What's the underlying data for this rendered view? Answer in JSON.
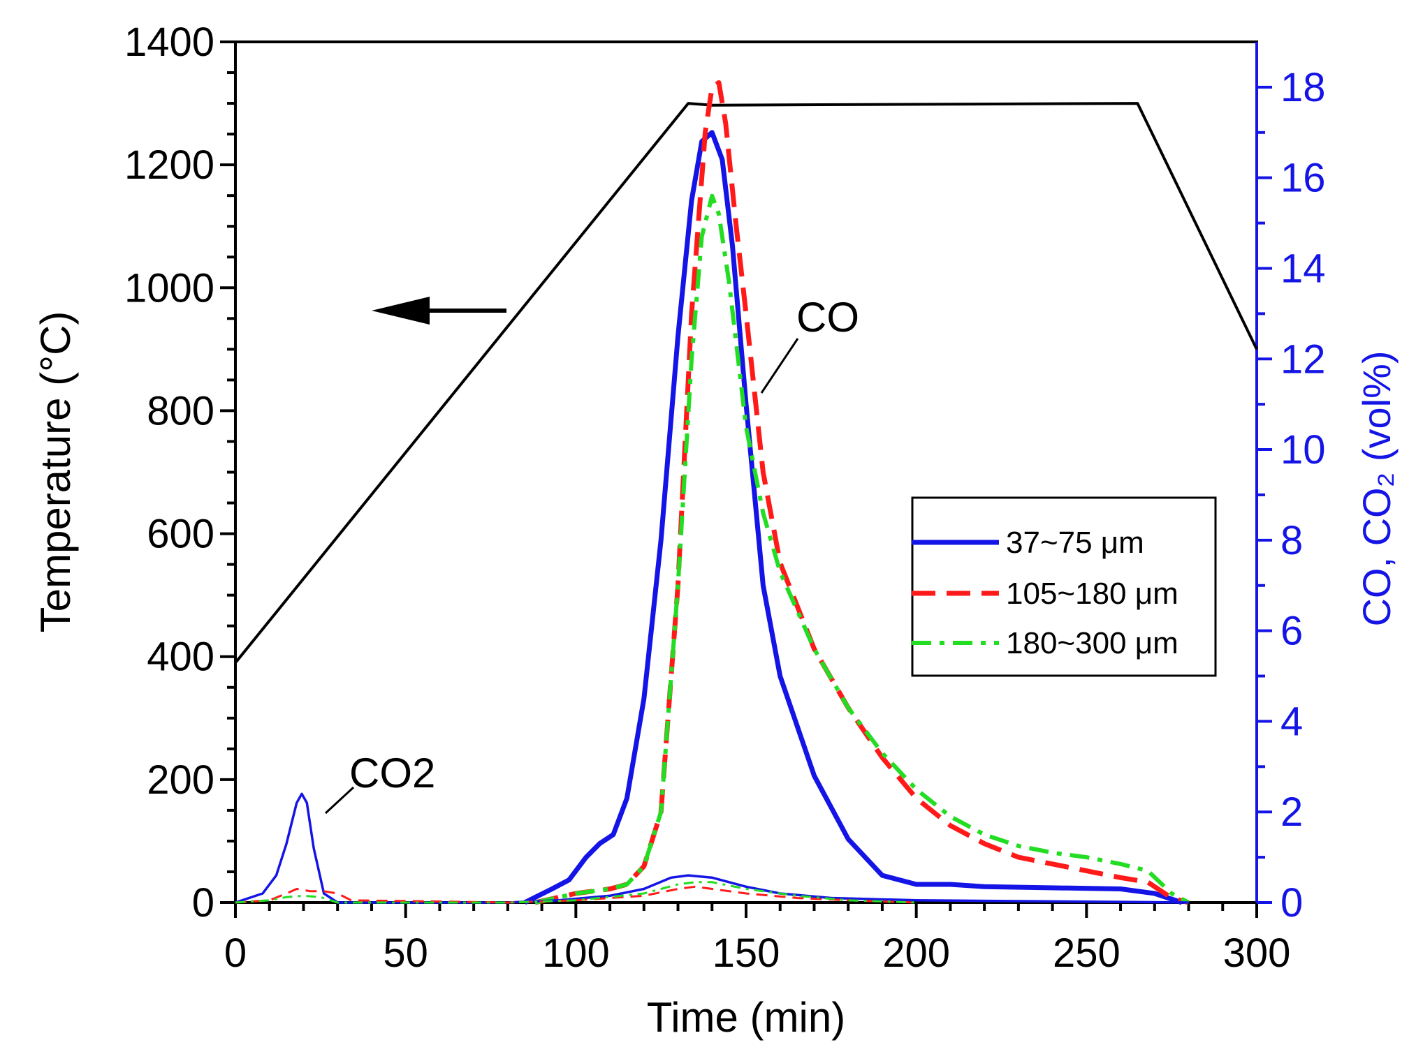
{
  "chart_data": {
    "type": "line",
    "title": "",
    "xlabel": "Time (min)",
    "ylabel_left": "Temperature (°C)",
    "ylabel_right": "CO, CO₂ (vol%)",
    "xlim": [
      0,
      300
    ],
    "ylim_left": [
      0,
      1400
    ],
    "ylim_right": [
      0,
      19
    ],
    "xticks": [
      "0",
      "50",
      "100",
      "150",
      "200",
      "250",
      "300"
    ],
    "yticks_left": [
      "0",
      "200",
      "400",
      "600",
      "800",
      "1000",
      "1200",
      "1400"
    ],
    "yticks_right": [
      "0",
      "2",
      "4",
      "6",
      "8",
      "10",
      "12",
      "14",
      "16",
      "18"
    ],
    "grid": false,
    "legend_position": "right-middle",
    "colors": {
      "temperature": "#000000",
      "fine": "#1414e6",
      "medium": "#ff1a1a",
      "coarse": "#22dd22",
      "right_axis": "#1414e6"
    },
    "annotations": [
      {
        "id": "co",
        "label": "CO"
      },
      {
        "id": "co2",
        "label": "CO2"
      }
    ],
    "series": [
      {
        "name": "Temperature",
        "axis": "left",
        "style": "solid",
        "x": [
          0,
          133,
          140,
          265,
          300
        ],
        "y": [
          390,
          1300,
          1297,
          1300,
          900
        ]
      },
      {
        "name": "37~75 μm",
        "axis": "right",
        "gas": "CO",
        "style": "solid",
        "x": [
          85,
          93,
          98,
          103,
          107,
          111,
          115,
          120,
          125,
          130,
          134,
          137,
          140,
          143,
          146,
          150,
          155,
          160,
          170,
          180,
          190,
          200,
          210,
          220,
          260,
          270,
          278
        ],
        "y": [
          0,
          0.3,
          0.5,
          1.0,
          1.3,
          1.5,
          2.3,
          4.5,
          8,
          12.5,
          15.5,
          16.8,
          17.0,
          16.4,
          14.5,
          11,
          7,
          5,
          2.8,
          1.4,
          0.6,
          0.4,
          0.4,
          0.35,
          0.3,
          0.2,
          0
        ]
      },
      {
        "name": "105~180 μm",
        "axis": "right",
        "gas": "CO",
        "style": "dashed",
        "x": [
          88,
          100,
          110,
          115,
          120,
          125,
          130,
          134,
          138,
          140,
          142,
          144,
          147,
          150,
          155,
          160,
          170,
          180,
          190,
          200,
          210,
          220,
          230,
          240,
          250,
          260,
          268,
          275,
          280
        ],
        "y": [
          0,
          0.2,
          0.3,
          0.4,
          0.8,
          2.0,
          7,
          13,
          17,
          18.0,
          18.1,
          17.2,
          15,
          13,
          9.5,
          7.5,
          5.6,
          4.3,
          3.2,
          2.3,
          1.7,
          1.3,
          1.0,
          0.85,
          0.7,
          0.55,
          0.45,
          0.1,
          0
        ]
      },
      {
        "name": "180~300 μm",
        "axis": "right",
        "gas": "CO",
        "style": "dashdot",
        "x": [
          88,
          100,
          110,
          115,
          120,
          125,
          130,
          134,
          137,
          140,
          142,
          145,
          150,
          155,
          160,
          170,
          180,
          190,
          200,
          210,
          220,
          230,
          240,
          250,
          260,
          268,
          275,
          280
        ],
        "y": [
          0,
          0.2,
          0.3,
          0.4,
          0.8,
          2.0,
          7,
          12,
          14.7,
          15.6,
          15.2,
          13.7,
          10.5,
          8.6,
          7.3,
          5.6,
          4.3,
          3.3,
          2.5,
          1.9,
          1.5,
          1.25,
          1.1,
          1.0,
          0.85,
          0.7,
          0.2,
          0
        ]
      },
      {
        "name": "37~75 μm",
        "axis": "right",
        "gas": "CO2",
        "style": "thin-solid",
        "x": [
          0,
          8,
          12,
          15,
          18,
          19.5,
          21,
          23,
          26,
          30,
          80,
          95,
          110,
          120,
          128,
          133,
          140,
          150,
          160,
          175,
          200,
          250,
          280
        ],
        "y": [
          0,
          0.2,
          0.6,
          1.3,
          2.2,
          2.4,
          2.2,
          1.2,
          0.2,
          0,
          0,
          0.05,
          0.15,
          0.3,
          0.55,
          0.6,
          0.55,
          0.35,
          0.2,
          0.1,
          0.05,
          0.02,
          0
        ]
      },
      {
        "name": "105~180 μm",
        "axis": "right",
        "gas": "CO2",
        "style": "thin-dashed",
        "x": [
          0,
          10,
          15,
          18,
          22,
          26,
          30,
          34,
          80,
          100,
          120,
          130,
          135,
          140,
          150,
          165,
          180,
          200
        ],
        "y": [
          0,
          0.05,
          0.2,
          0.3,
          0.25,
          0.25,
          0.2,
          0.05,
          0,
          0.05,
          0.15,
          0.3,
          0.35,
          0.3,
          0.2,
          0.1,
          0.05,
          0
        ]
      },
      {
        "name": "180~300 μm",
        "axis": "right",
        "gas": "CO2",
        "style": "thin-dashdot",
        "x": [
          0,
          10,
          15,
          20,
          25,
          30,
          80,
          100,
          120,
          130,
          135,
          140,
          150,
          165,
          180,
          200
        ],
        "y": [
          0,
          0.05,
          0.12,
          0.15,
          0.12,
          0,
          0,
          0.05,
          0.2,
          0.4,
          0.45,
          0.45,
          0.3,
          0.15,
          0.05,
          0
        ]
      }
    ]
  }
}
